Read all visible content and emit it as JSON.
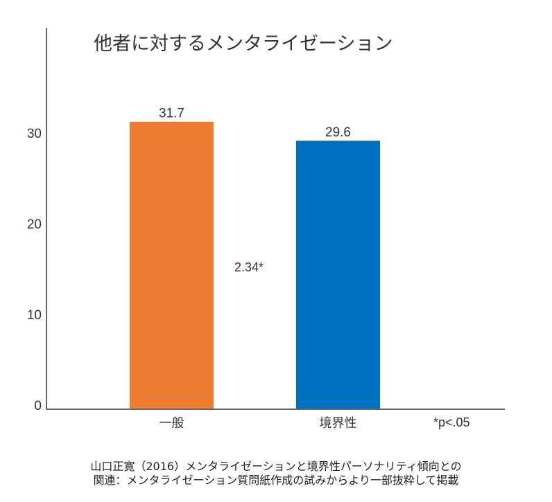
{
  "chart_data": {
    "type": "bar",
    "title": "他者に対するメンタライゼーション",
    "categories": [
      "一般",
      "境界性"
    ],
    "values": [
      31.7,
      29.6
    ],
    "value_labels": [
      "31.7",
      "29.6"
    ],
    "colors": [
      "#ED7D31",
      "#0070C0"
    ],
    "yticks": [
      0,
      10,
      20,
      30
    ],
    "ylim": [
      0,
      42
    ],
    "xlabel": "",
    "ylabel": "",
    "grid": false,
    "annotation": "2.34*",
    "significance_note": "*p<.05",
    "caption_lines": [
      "山口正寛（2016）メンタライゼーションと境界性パーソナリティ傾向との",
      "関連：メンタライゼーション質問紙作成の試みからより一部抜粋して掲載"
    ]
  }
}
